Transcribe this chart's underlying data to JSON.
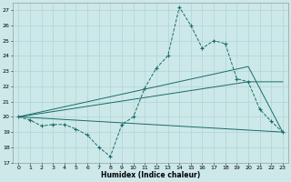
{
  "xlabel": "Humidex (Indice chaleur)",
  "bg_color": "#cce8e8",
  "line_color": "#1a6b6b",
  "grid_color": "#aacfcf",
  "xlim": [
    -0.5,
    23.5
  ],
  "ylim": [
    17,
    27.5
  ],
  "yticks": [
    17,
    18,
    19,
    20,
    21,
    22,
    23,
    24,
    25,
    26,
    27
  ],
  "xticks": [
    0,
    1,
    2,
    3,
    4,
    5,
    6,
    7,
    8,
    9,
    10,
    11,
    12,
    13,
    14,
    15,
    16,
    17,
    18,
    19,
    20,
    21,
    22,
    23
  ],
  "main_x": [
    0,
    1,
    2,
    3,
    4,
    5,
    6,
    7,
    8,
    9,
    10,
    11,
    12,
    13,
    14,
    15,
    16,
    17,
    18,
    19,
    20,
    21,
    22,
    23
  ],
  "main_y": [
    20.0,
    19.8,
    19.4,
    19.5,
    19.5,
    19.2,
    18.8,
    18.0,
    17.4,
    19.5,
    20.0,
    21.9,
    23.2,
    24.0,
    27.2,
    26.0,
    24.5,
    25.0,
    24.8,
    22.5,
    22.3,
    20.5,
    19.7,
    19.0
  ],
  "trend1_x": [
    0,
    20,
    23
  ],
  "trend1_y": [
    20.0,
    23.3,
    19.0
  ],
  "trend2_x": [
    0,
    20,
    23
  ],
  "trend2_y": [
    20.0,
    22.3,
    22.3
  ],
  "trend3_x": [
    0,
    23
  ],
  "trend3_y": [
    20.0,
    19.0
  ]
}
